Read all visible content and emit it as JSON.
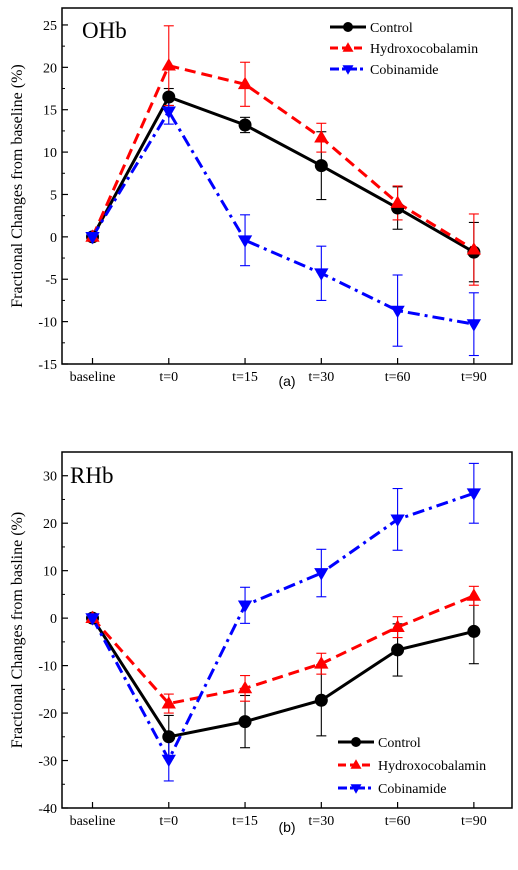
{
  "figure": {
    "charts": [
      {
        "caption": "(a)",
        "panel_label": "OHb"
      },
      {
        "caption": "(b)",
        "panel_label": "RHb"
      }
    ]
  },
  "chart_data": [
    {
      "type": "line",
      "panel_label": "OHb",
      "caption": "(a)",
      "title": "",
      "xlabel": "",
      "ylabel": "Fractional Changes from baseline (%)",
      "categories": [
        "baseline",
        "t=0",
        "t=15",
        "t=30",
        "t=60",
        "t=90"
      ],
      "ylim": [
        -15,
        27
      ],
      "yticks": [
        -15,
        -10,
        -5,
        0,
        5,
        10,
        15,
        20,
        25
      ],
      "legend_position": "top-right",
      "grid": false,
      "series": [
        {
          "name": "Control",
          "color": "#000000",
          "line_style": "solid",
          "marker": "circle",
          "values": [
            0,
            16.5,
            13.2,
            8.4,
            3.4,
            -1.8
          ],
          "errors": [
            0,
            1.0,
            0.9,
            4.0,
            2.5,
            3.5
          ]
        },
        {
          "name": "Hydroxocobalamin",
          "color": "#ff0000",
          "line_style": "dashed",
          "marker": "triangle-up",
          "values": [
            0,
            20.2,
            18.0,
            11.7,
            4.0,
            -1.5
          ],
          "errors": [
            0,
            4.7,
            2.6,
            1.7,
            2.0,
            4.2
          ]
        },
        {
          "name": "Cobinamide",
          "color": "#0000ff",
          "line_style": "dashdot",
          "marker": "triangle-down",
          "values": [
            0,
            14.8,
            -0.4,
            -4.3,
            -8.7,
            -10.3
          ],
          "errors": [
            0,
            1.5,
            3.0,
            3.2,
            4.2,
            3.7
          ]
        }
      ]
    },
    {
      "type": "line",
      "panel_label": "RHb",
      "caption": "(b)",
      "title": "",
      "xlabel": "",
      "ylabel": "Fractional Changes from basline (%)",
      "categories": [
        "baseline",
        "t=0",
        "t=15",
        "t=30",
        "t=60",
        "t=90"
      ],
      "ylim": [
        -40,
        35
      ],
      "yticks": [
        -40,
        -30,
        -20,
        -10,
        0,
        10,
        20,
        30
      ],
      "legend_position": "bottom-right",
      "grid": false,
      "series": [
        {
          "name": "Control",
          "color": "#000000",
          "line_style": "solid",
          "marker": "circle",
          "values": [
            0,
            -25.0,
            -21.8,
            -17.3,
            -6.7,
            -2.8
          ],
          "errors": [
            0,
            4.5,
            5.5,
            7.5,
            5.5,
            6.8
          ]
        },
        {
          "name": "Hydroxocobalamin",
          "color": "#ff0000",
          "line_style": "dashed",
          "marker": "triangle-up",
          "values": [
            0,
            -18.0,
            -14.8,
            -9.6,
            -1.9,
            4.7
          ],
          "errors": [
            0,
            2.0,
            2.7,
            2.2,
            2.2,
            2.0
          ]
        },
        {
          "name": "Cobinamide",
          "color": "#0000ff",
          "line_style": "dashdot",
          "marker": "triangle-down",
          "values": [
            0,
            -29.8,
            2.7,
            9.5,
            20.8,
            26.3
          ],
          "errors": [
            0,
            4.5,
            3.8,
            5.0,
            6.5,
            6.3
          ]
        }
      ]
    }
  ]
}
